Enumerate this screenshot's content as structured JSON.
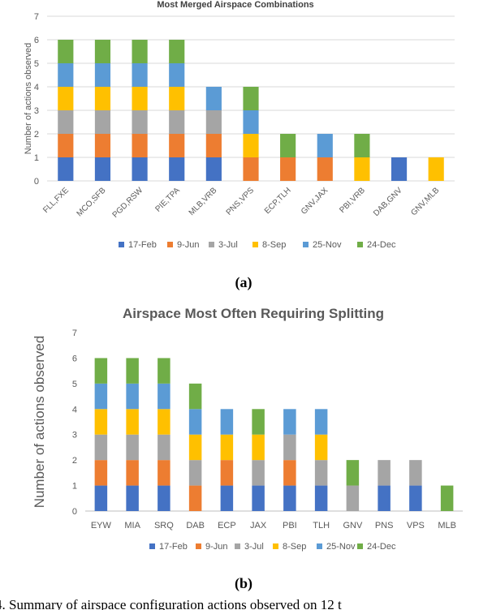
{
  "charts": [
    {
      "caption": "(a)",
      "chart_data": {
        "type": "bar",
        "stacked": true,
        "title": "Most Merged Airspace Combinations",
        "xlabel": "",
        "ylabel": "Number of actions observed",
        "ylim": [
          0,
          7
        ],
        "yticks": [
          "0",
          "1",
          "2",
          "3",
          "4",
          "5",
          "6",
          "7"
        ],
        "grid": true,
        "legend_position": "bottom",
        "categories": [
          "FLL,FXE",
          "MCO,SFB",
          "PGD,RSW",
          "PIE,TPA",
          "MLB,VRB",
          "PNS,VPS",
          "ECP,TLH",
          "GNV,JAX",
          "PBI,VRB",
          "DAB,GNV",
          "GNV,MLB"
        ],
        "series": [
          {
            "name": "17-Feb",
            "color": "#4472c4",
            "values": [
              1,
              1,
              1,
              1,
              1,
              0,
              0,
              0,
              0,
              1,
              0
            ]
          },
          {
            "name": "9-Jun",
            "color": "#ed7d31",
            "values": [
              1,
              1,
              1,
              1,
              1,
              1,
              1,
              1,
              0,
              0,
              0
            ]
          },
          {
            "name": "3-Jul",
            "color": "#a5a5a5",
            "values": [
              1,
              1,
              1,
              1,
              1,
              0,
              0,
              0,
              0,
              0,
              0
            ]
          },
          {
            "name": "8-Sep",
            "color": "#ffc000",
            "values": [
              1,
              1,
              1,
              1,
              0,
              1,
              0,
              0,
              1,
              0,
              1
            ]
          },
          {
            "name": "25-Nov",
            "color": "#5b9bd5",
            "values": [
              1,
              1,
              1,
              1,
              1,
              1,
              0,
              1,
              0,
              0,
              0
            ]
          },
          {
            "name": "24-Dec",
            "color": "#70ad47",
            "values": [
              1,
              1,
              1,
              1,
              0,
              1,
              1,
              0,
              1,
              0,
              0
            ]
          }
        ]
      }
    },
    {
      "caption": "(b)",
      "chart_data": {
        "type": "bar",
        "stacked": true,
        "title": "Airspace Most Often Requiring Splitting",
        "xlabel": "",
        "ylabel": "Number of actions observed",
        "ylim": [
          0,
          7
        ],
        "yticks": [
          "0",
          "1",
          "2",
          "3",
          "4",
          "5",
          "6",
          "7"
        ],
        "grid": false,
        "legend_position": "bottom",
        "categories": [
          "EYW",
          "MIA",
          "SRQ",
          "DAB",
          "ECP",
          "JAX",
          "PBI",
          "TLH",
          "GNV",
          "PNS",
          "VPS",
          "MLB"
        ],
        "series": [
          {
            "name": "17-Feb",
            "color": "#4472c4",
            "values": [
              1,
              1,
              1,
              0,
              1,
              1,
              1,
              1,
              0,
              1,
              1,
              0
            ]
          },
          {
            "name": "9-Jun",
            "color": "#ed7d31",
            "values": [
              1,
              1,
              1,
              1,
              1,
              0,
              1,
              0,
              0,
              0,
              0,
              0
            ]
          },
          {
            "name": "3-Jul",
            "color": "#a5a5a5",
            "values": [
              1,
              1,
              1,
              1,
              0,
              1,
              1,
              1,
              1,
              1,
              1,
              0
            ]
          },
          {
            "name": "8-Sep",
            "color": "#ffc000",
            "values": [
              1,
              1,
              1,
              1,
              1,
              1,
              0,
              1,
              0,
              0,
              0,
              0
            ]
          },
          {
            "name": "25-Nov",
            "color": "#5b9bd5",
            "values": [
              1,
              1,
              1,
              1,
              1,
              0,
              1,
              1,
              0,
              0,
              0,
              0
            ]
          },
          {
            "name": "24-Dec",
            "color": "#70ad47",
            "values": [
              1,
              1,
              1,
              1,
              0,
              1,
              0,
              0,
              1,
              0,
              0,
              1
            ]
          }
        ]
      }
    }
  ],
  "footer_text": "4.  Summary of airspace configuration actions observed on 12 t"
}
